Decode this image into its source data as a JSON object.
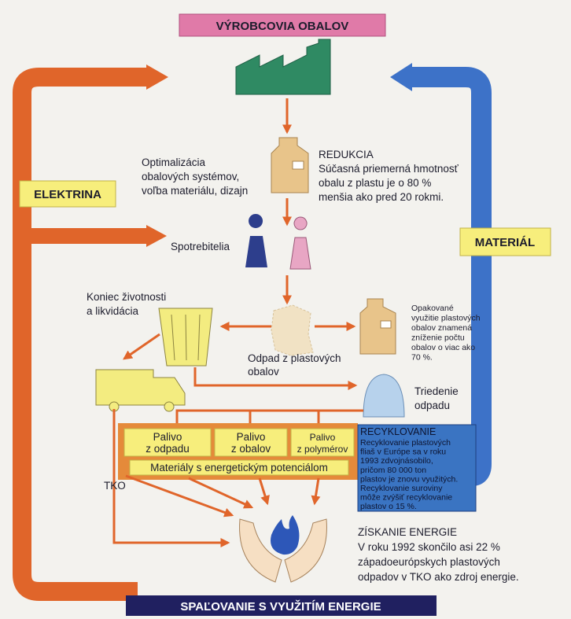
{
  "header": {
    "title": "VÝROBCOVIA OBALOV"
  },
  "footer": {
    "title": "SPAĽOVANIE S VYUŽITÍM ENERGIE"
  },
  "cycle": {
    "left": "ELEKTRINA",
    "right": "MATERIÁL"
  },
  "nodes": {
    "optimization": {
      "lines": [
        "Optimalizácia",
        "obalových systémov,",
        "voľba materiálu, dizajn"
      ]
    },
    "reduction": {
      "title": "REDUKCIA",
      "lines": [
        "Súčasná priemerná hmotnosť",
        "obalu z plastu je o 80 %",
        "menšia ako pred 20 rokmi."
      ]
    },
    "consumers": {
      "lines": [
        "Spotrebitelia"
      ]
    },
    "end_of_life": {
      "lines": [
        "Koniec životnosti",
        "a likvidácia"
      ]
    },
    "reuse": {
      "lines": [
        "Opakované",
        "využitie plastových",
        "obalov znamená",
        "zníženie počtu",
        "obalov o viac ako",
        "70 %."
      ]
    },
    "waste": {
      "lines": [
        "Odpad z plastových",
        "obalov"
      ]
    },
    "sorting": {
      "lines": [
        "Triedenie",
        "odpadu"
      ]
    },
    "fuels": [
      {
        "lines": [
          "Palivo",
          "z odpadu"
        ]
      },
      {
        "lines": [
          "Palivo",
          "z obalov"
        ]
      },
      {
        "lines": [
          "Palivo",
          "z polymérov"
        ]
      }
    ],
    "energy_materials": {
      "lines": [
        "Materiály s energetickým potenciálom"
      ]
    },
    "tko": {
      "lines": [
        "TKO"
      ]
    },
    "recycling": {
      "title": "RECYKLOVANIE",
      "lines": [
        "Recyklovanie plastových",
        "fliaš v Európe sa v roku",
        "1993 zdvojnásobilo,",
        "pričom 80 000 ton",
        "plastov je znovu využitých.",
        "Recyklovanie suroviny",
        "môže zvýšiť recyklovanie",
        "plastov o 15 %."
      ]
    },
    "energy_recovery": {
      "title": "ZÍSKANIE ENERGIE",
      "lines": [
        "V roku 1992 skončilo asi 22 %",
        "západoeurópskych plastových",
        "odpadov v TKO ako zdroj energie."
      ]
    }
  }
}
